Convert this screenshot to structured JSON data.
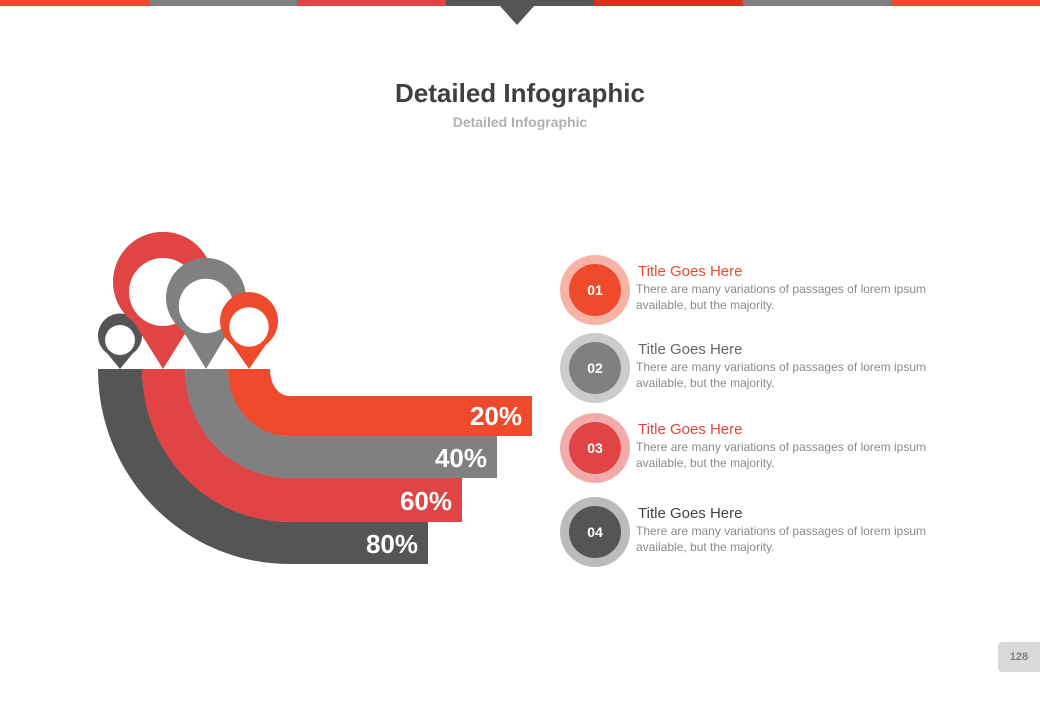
{
  "header": {
    "bar_colors": [
      "#f04a2c",
      "#808080",
      "#e04444",
      "#555555",
      "#d8321c",
      "#808080",
      "#f04a2c"
    ],
    "title": "Detailed Infographic",
    "subtitle": "Detailed Infographic"
  },
  "bands": [
    {
      "label": "80%",
      "value": 80,
      "color": "#555555"
    },
    {
      "label": "60%",
      "value": 60,
      "color": "#e04444"
    },
    {
      "label": "40%",
      "value": 40,
      "color": "#808080"
    },
    {
      "label": "20%",
      "value": 20,
      "color": "#f04a2c"
    }
  ],
  "pins": [
    {
      "color": "#555555"
    },
    {
      "color": "#e04444"
    },
    {
      "color": "#808080"
    },
    {
      "color": "#f04a2c"
    }
  ],
  "items": [
    {
      "number": "01",
      "title": "Title Goes Here",
      "desc": "There are many variations of passages of lorem ipsum available, but the majority.",
      "color": "#f04a2c",
      "ring_color": "#f7b4a6",
      "title_color": "#f04a2c"
    },
    {
      "number": "02",
      "title": "Title Goes Here",
      "desc": "There are many variations of passages of lorem ipsum available, but the majority.",
      "color": "#808080",
      "ring_color": "#cccccc",
      "title_color": "#666666"
    },
    {
      "number": "03",
      "title": "Title Goes Here",
      "desc": "There are many variations of passages of lorem ipsum available, but the majority.",
      "color": "#e04444",
      "ring_color": "#f3aaaa",
      "title_color": "#e04444"
    },
    {
      "number": "04",
      "title": "Title Goes Here",
      "desc": "There are many variations of passages of lorem ipsum available, but the majority.",
      "color": "#555555",
      "ring_color": "#bbbbbb",
      "title_color": "#444444"
    }
  ],
  "page_number": "128"
}
